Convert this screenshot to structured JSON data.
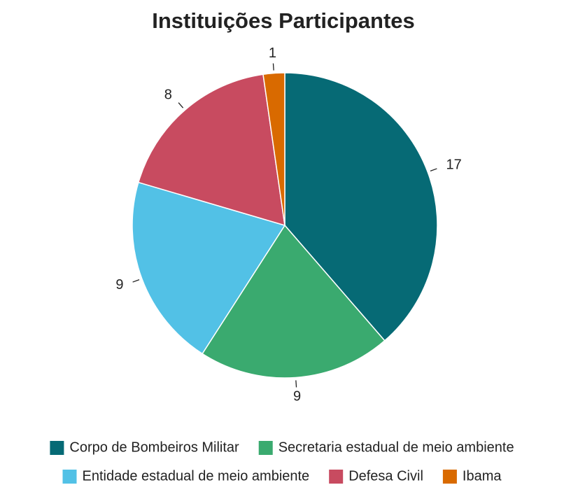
{
  "chart_data": {
    "type": "pie",
    "title": "Instituições Participantes",
    "categories": [
      "Corpo de Bombeiros Militar",
      "Secretaria estadual de meio ambiente",
      "Entidade estadual de meio ambiente",
      "Defesa Civil",
      "Ibama"
    ],
    "values": [
      17,
      9,
      9,
      8,
      1
    ],
    "colors": [
      "#066a75",
      "#3aaa6f",
      "#52c1e6",
      "#c84b60",
      "#d96a00"
    ]
  }
}
